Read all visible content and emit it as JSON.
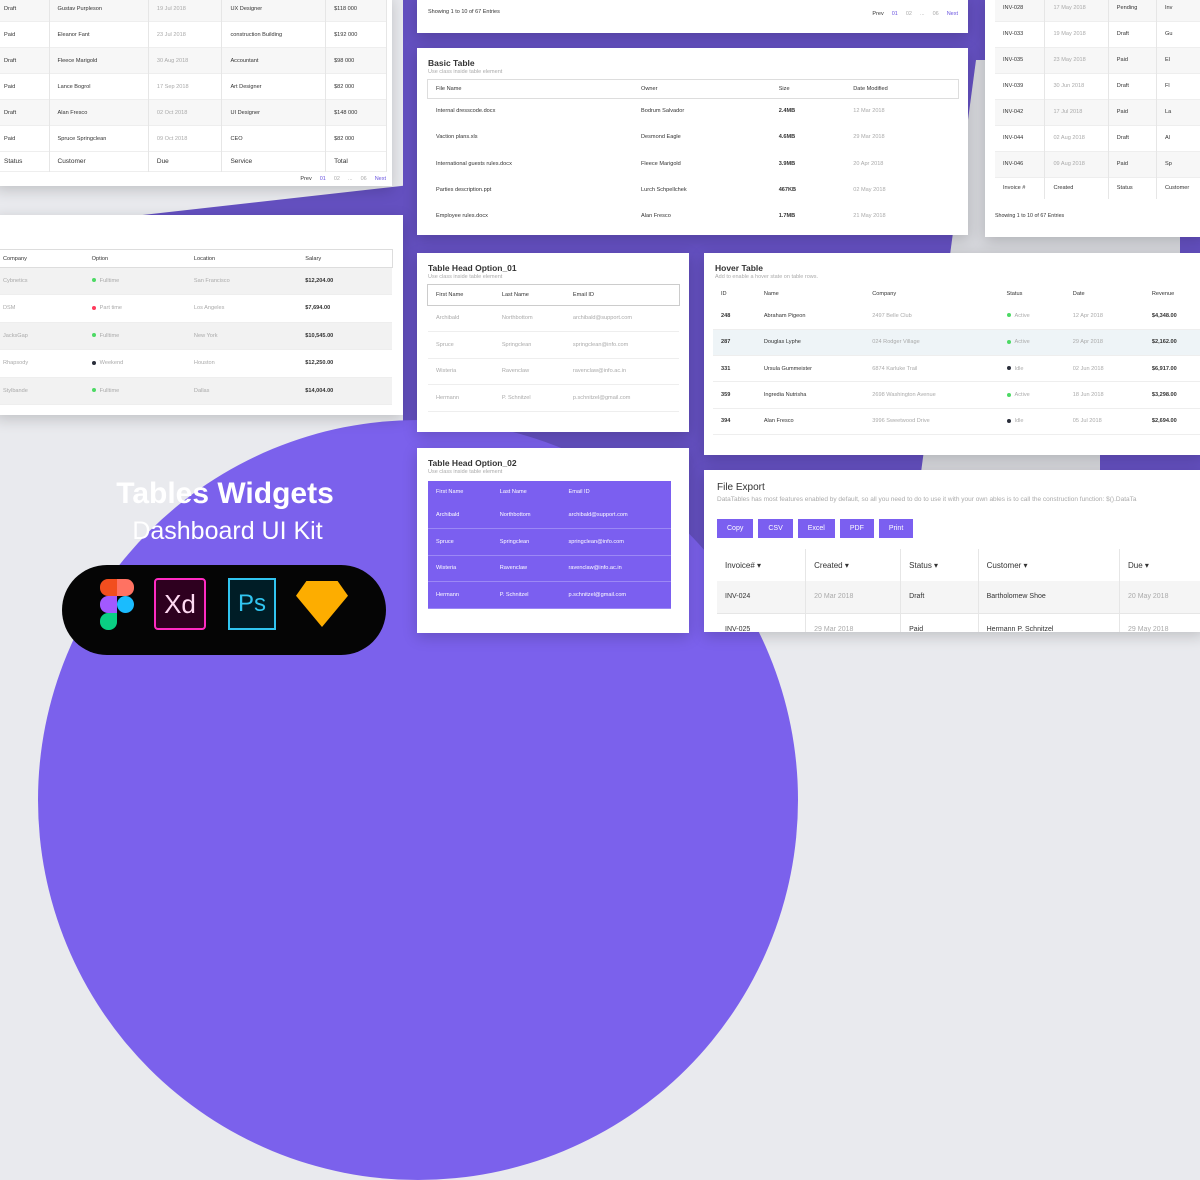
{
  "colors": {
    "purple": "#7b5ff0",
    "purple_dark": "#6450c0",
    "active": "#4cd964",
    "idle": "#2a2e3a",
    "part_time": "#ff3b5c"
  },
  "invoices_left": {
    "columns": [
      "Status",
      "Customer",
      "Due",
      "Service",
      "Total"
    ],
    "rows": [
      [
        "Draft",
        "Gustav Purpleson",
        "19 Jul 2018",
        "UX Designer",
        "$118 000"
      ],
      [
        "Paid",
        "Eleanor Fant",
        "23 Jul 2018",
        "construction Building",
        "$192 000"
      ],
      [
        "Draft",
        "Fleece Marigold",
        "30 Aug 2018",
        "Accountant",
        "$98 000"
      ],
      [
        "Paid",
        "Lance Bogrol",
        "17 Sep 2018",
        "Art Designer",
        "$82 000"
      ],
      [
        "Draft",
        "Alan Fresco",
        "02 Oct 2018",
        "UI Designer",
        "$148 000"
      ],
      [
        "Paid",
        "Spruce Springclean",
        "09 Oct 2018",
        "CEO",
        "$82 000"
      ]
    ],
    "pager": [
      "Prev",
      "01",
      "02",
      "...",
      "06",
      "Next"
    ]
  },
  "salary": {
    "columns": [
      "Company",
      "Option",
      "Location",
      "Salary"
    ],
    "rows": [
      [
        "Cybnetics",
        "Fulltime",
        "San Francisco",
        "$12,204.00",
        "active"
      ],
      [
        "DSM",
        "Part time",
        "Los Angeles",
        "$7,694.00",
        "part_time"
      ],
      [
        "JacksGap",
        "Fulltime",
        "New York",
        "$10,545.00",
        "active"
      ],
      [
        "Rhapsody",
        "Weekend",
        "Houston",
        "$12,250.00",
        "idle"
      ],
      [
        "Stylbande",
        "Fulltime",
        "Dallas",
        "$14,004.00",
        "active"
      ]
    ]
  },
  "top_mid": {
    "showing": "Showing 1 to 10 of 67 Entries",
    "pager": [
      "Prev",
      "01",
      "02",
      "...",
      "06",
      "Next"
    ]
  },
  "basic": {
    "title": "Basic Table",
    "subtitle": "Use class inside table element",
    "columns": [
      "File Name",
      "Owner",
      "Size",
      "Date Modified"
    ],
    "rows": [
      [
        "Internal dresscode.docx",
        "Bodrum Salvador",
        "2.4MB",
        "12 Mar 2018"
      ],
      [
        "Vaction plans.xls",
        "Desmond Eagle",
        "4.6MB",
        "29 Mar 2018"
      ],
      [
        "International guests rules.docx",
        "Fleece Marigold",
        "3.9MB",
        "20 Apr 2018"
      ],
      [
        "Parties description.ppt",
        "Lurch Schpellchek",
        "467KB",
        "02 May 2018"
      ],
      [
        "Employee rules.docx",
        "Alan Fresco",
        "1.7MB",
        "21 May 2018"
      ]
    ]
  },
  "invoices_right": {
    "columns": [
      "Invoice #",
      "Created",
      "Status",
      "Customer"
    ],
    "rows": [
      [
        "INV-028",
        "17 May 2018",
        "Pending",
        "Inv"
      ],
      [
        "INV-033",
        "19 May 2018",
        "Draft",
        "Gu"
      ],
      [
        "INV-035",
        "23 May 2018",
        "Paid",
        "El"
      ],
      [
        "INV-039",
        "30 Jun 2018",
        "Draft",
        "Fl"
      ],
      [
        "INV-042",
        "17 Jul 2018",
        "Paid",
        "La"
      ],
      [
        "INV-044",
        "02 Aug 2018",
        "Draft",
        "Al"
      ],
      [
        "INV-046",
        "09 Aug 2018",
        "Paid",
        "Sp"
      ]
    ],
    "showing": "Showing 1 to 10 of 67 Entries"
  },
  "head1": {
    "title": "Table Head Option_01",
    "subtitle": "Use class inside table element",
    "columns": [
      "First Name",
      "Last Name",
      "Email ID"
    ],
    "rows": [
      [
        "Archibald",
        "Northbottom",
        "archibald@support.com"
      ],
      [
        "Spruce",
        "Springclean",
        "springclean@info.com"
      ],
      [
        "Wisteria",
        "Ravenclaw",
        "ravenclaw@info.ac.in"
      ],
      [
        "Hermann",
        "P. Schnitzel",
        "p.schnitzel@gmail.com"
      ]
    ]
  },
  "head2": {
    "title": "Table Head Option_02",
    "subtitle": "Use class inside table element",
    "columns": [
      "First Name",
      "Last Name",
      "Email ID"
    ],
    "rows": [
      [
        "Archibald",
        "Northbottom",
        "archibald@support.com"
      ],
      [
        "Spruce",
        "Springclean",
        "springclean@info.com"
      ],
      [
        "Wisteria",
        "Ravenclaw",
        "ravenclaw@info.ac.in"
      ],
      [
        "Hermann",
        "P. Schnitzel",
        "p.schnitzel@gmail.com"
      ]
    ]
  },
  "hover": {
    "title": "Hover Table",
    "subtitle": "Add to enable a hover state on table rows.",
    "columns": [
      "ID",
      "Name",
      "Company",
      "Status",
      "Date",
      "Revenue"
    ],
    "rows": [
      [
        "248",
        "Abraham Pigeon",
        "2497 Belle Club",
        "Active",
        "12 Apr 2018",
        "$4,348.00",
        "active"
      ],
      [
        "287",
        "Douglas Lyphe",
        "024 Rodger Village",
        "Active",
        "29 Apr 2018",
        "$2,162.00",
        "active"
      ],
      [
        "331",
        "Ursula Gummeister",
        "6874 Karluke Trail",
        "Idle",
        "02 Jun 2018",
        "$6,917.00",
        "idle"
      ],
      [
        "359",
        "Ingredia Nutrisha",
        "2698 Washington Avenue",
        "Active",
        "18 Jun 2018",
        "$3,298.00",
        "active"
      ],
      [
        "394",
        "Alan Fresco",
        "3996 Sweetwood Drive",
        "Idle",
        "05 Jul 2018",
        "$2,694.00",
        "idle"
      ]
    ]
  },
  "export": {
    "title": "File Export",
    "subtitle": "DataTables has most features enabled by default, so all you need to do to use it with your own ables is to call the construction function: $().DataTa",
    "buttons": [
      "Copy",
      "CSV",
      "Excel",
      "PDF",
      "Print"
    ],
    "columns": [
      "Invoice#",
      "Created",
      "Status",
      "Customer",
      "Due"
    ],
    "rows": [
      [
        "INV-024",
        "20 Mar 2018",
        "Draft",
        "Bartholomew Shoe",
        "20 May 2018"
      ],
      [
        "INV-025",
        "29 Mar 2018",
        "Paid",
        "Hermann P. Schnitzel",
        "29 May 2018"
      ]
    ]
  },
  "hero": {
    "title": "Tables Widgets",
    "subtitle": "Dashboard UI Kit",
    "tools": [
      {
        "name": "figma-icon"
      },
      {
        "name": "xd-icon",
        "label": "Xd"
      },
      {
        "name": "photoshop-icon",
        "label": "Ps"
      },
      {
        "name": "sketch-icon"
      }
    ]
  }
}
